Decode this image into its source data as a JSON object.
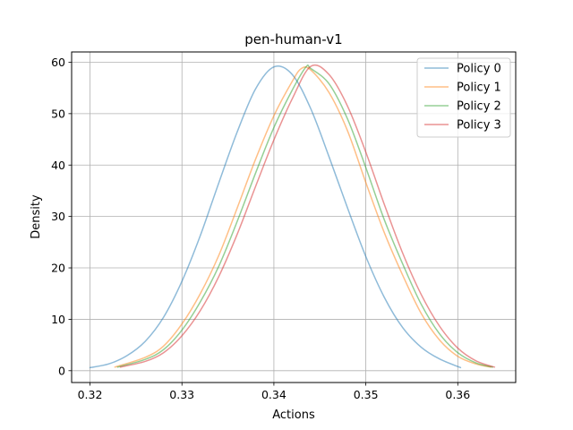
{
  "chart_data": {
    "type": "line",
    "title": "pen-human-v1",
    "xlabel": "Actions",
    "ylabel": "Density",
    "xlim": [
      0.318,
      0.3663
    ],
    "ylim": [
      -2.3,
      62.0
    ],
    "xticks": [
      0.32,
      0.33,
      0.34,
      0.35,
      0.36
    ],
    "xtick_labels": [
      "0.32",
      "0.33",
      "0.34",
      "0.35",
      "0.36"
    ],
    "yticks": [
      0,
      10,
      20,
      30,
      40,
      50,
      60
    ],
    "ytick_labels": [
      "0",
      "10",
      "20",
      "30",
      "40",
      "50",
      "60"
    ],
    "grid": true,
    "legend_position": "top-right",
    "series": [
      {
        "name": "Policy 0",
        "color": "#1f77b4",
        "x": [
          0.32,
          0.322,
          0.324,
          0.326,
          0.328,
          0.33,
          0.332,
          0.334,
          0.336,
          0.338,
          0.34,
          0.342,
          0.344,
          0.346,
          0.348,
          0.35,
          0.352,
          0.354,
          0.356,
          0.358,
          0.3603
        ],
        "y": [
          0.6,
          1.3,
          2.9,
          5.7,
          10.4,
          17.4,
          26.3,
          36.5,
          46.4,
          54.8,
          59.1,
          57.6,
          51.0,
          41.6,
          31.7,
          22.2,
          14.3,
          8.4,
          4.6,
          2.3,
          0.6
        ]
      },
      {
        "name": "Policy 1",
        "color": "#ff7f0e",
        "x": [
          0.3227,
          0.326,
          0.328,
          0.33,
          0.332,
          0.334,
          0.336,
          0.338,
          0.34,
          0.342,
          0.343,
          0.344,
          0.346,
          0.348,
          0.35,
          0.352,
          0.354,
          0.356,
          0.358,
          0.36,
          0.362,
          0.3636
        ],
        "y": [
          0.7,
          2.6,
          4.8,
          9.1,
          15.0,
          22.4,
          31.6,
          41.1,
          49.6,
          56.3,
          58.8,
          58.5,
          54.1,
          46.7,
          36.6,
          26.9,
          18.6,
          11.2,
          6.0,
          2.8,
          1.3,
          0.7
        ]
      },
      {
        "name": "Policy 2",
        "color": "#2ca02c",
        "x": [
          0.323,
          0.326,
          0.328,
          0.33,
          0.332,
          0.334,
          0.336,
          0.338,
          0.34,
          0.342,
          0.3435,
          0.344,
          0.346,
          0.348,
          0.35,
          0.352,
          0.354,
          0.356,
          0.358,
          0.36,
          0.362,
          0.3638
        ],
        "y": [
          0.7,
          2.2,
          4.1,
          7.9,
          13.4,
          20.3,
          29.0,
          38.4,
          47.3,
          54.6,
          59.1,
          58.8,
          55.8,
          49.0,
          39.5,
          29.4,
          20.8,
          13.0,
          7.2,
          3.5,
          1.5,
          0.7
        ]
      },
      {
        "name": "Policy 3",
        "color": "#d62728",
        "x": [
          0.3233,
          0.326,
          0.328,
          0.33,
          0.332,
          0.334,
          0.336,
          0.338,
          0.34,
          0.342,
          0.344,
          0.346,
          0.348,
          0.35,
          0.352,
          0.354,
          0.356,
          0.358,
          0.36,
          0.362,
          0.364
        ],
        "y": [
          0.7,
          1.8,
          3.5,
          6.8,
          11.7,
          18.3,
          26.5,
          35.8,
          44.9,
          52.9,
          59.2,
          57.6,
          51.5,
          42.5,
          32.4,
          22.9,
          14.9,
          8.7,
          4.4,
          1.9,
          0.7
        ]
      }
    ]
  }
}
